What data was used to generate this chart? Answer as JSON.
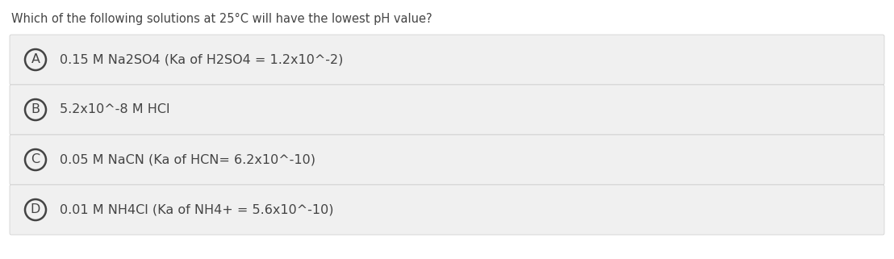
{
  "question": "Which of the following solutions at 25°C will have the lowest pH value?",
  "options": [
    {
      "label": "A",
      "text": "0.15 M Na2SO4 (Ka of H2SO4 = 1.2x10^-2)"
    },
    {
      "label": "B",
      "text": "5.2x10^-8 M HCl"
    },
    {
      "label": "C",
      "text": "0.05 M NaCN (Ka of HCN= 6.2x10^-10)"
    },
    {
      "label": "D",
      "text": "0.01 M NH4Cl (Ka of NH4+ = 5.6x10^-10)"
    }
  ],
  "fig_bg": "#ffffff",
  "option_bg_color": "#f0f0f0",
  "option_border_color": "#cccccc",
  "text_color": "#444444",
  "circle_edge_color": "#444444",
  "question_fontsize": 10.5,
  "option_fontsize": 11.5,
  "label_fontsize": 11.5,
  "fig_width": 11.08,
  "fig_height": 3.21,
  "dpi": 100
}
